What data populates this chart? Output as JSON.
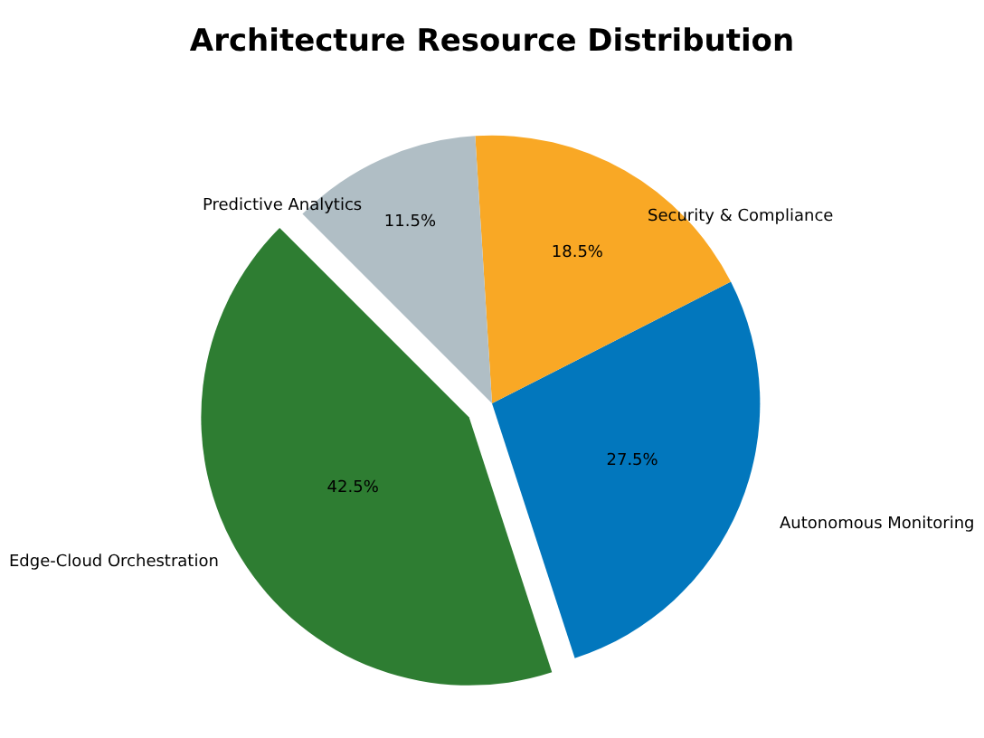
{
  "chart_data": {
    "type": "pie",
    "title": "Architecture Resource Distribution",
    "categories": [
      "Edge-Cloud Orchestration",
      "Autonomous Monitoring",
      "Security & Compliance",
      "Predictive Analytics"
    ],
    "values": [
      42.5,
      27.5,
      18.5,
      11.5
    ],
    "value_labels": [
      "42.5%",
      "27.5%",
      "18.5%",
      "11.5%"
    ],
    "colors": [
      "#2e7d32",
      "#0277bd",
      "#f9a825",
      "#b0bec5"
    ],
    "legend": false
  }
}
